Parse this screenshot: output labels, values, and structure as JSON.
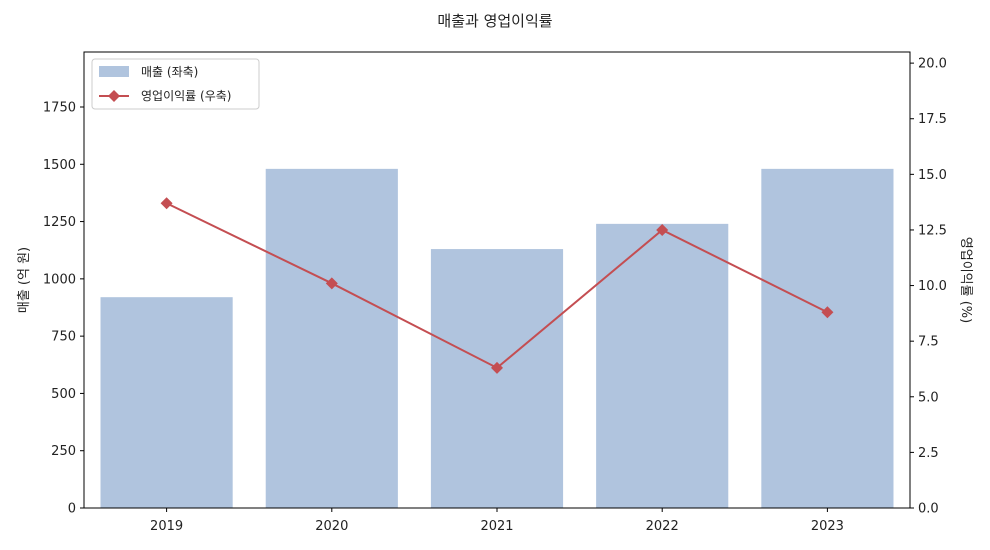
{
  "chart_data": {
    "type": "bar",
    "title": "매출과 영업이익률",
    "categories": [
      "2019",
      "2020",
      "2021",
      "2022",
      "2023"
    ],
    "series": [
      {
        "name": "매출 (좌축)",
        "type": "bar",
        "axis": "left",
        "color": "#b0c4de",
        "values": [
          920,
          1480,
          1130,
          1240,
          1480
        ]
      },
      {
        "name": "영업이익률 (우축)",
        "type": "line",
        "marker": "diamond",
        "axis": "right",
        "color": "#c44e52",
        "values": [
          13.7,
          10.1,
          6.3,
          12.5,
          8.8
        ]
      }
    ],
    "ylabel_left": "매출 (억 원)",
    "ylabel_right": "영업이익률 (%)",
    "ylim_left": [
      0,
      1990
    ],
    "ylim_right": [
      0,
      20.5
    ],
    "yticks_left": [
      "0",
      "250",
      "500",
      "750",
      "1000",
      "1250",
      "1500",
      "1750"
    ],
    "yticks_right": [
      "0.0",
      "2.5",
      "5.0",
      "7.5",
      "10.0",
      "12.5",
      "15.0",
      "17.5",
      "20.0"
    ],
    "grid": false,
    "legend_position": "upper-left"
  }
}
